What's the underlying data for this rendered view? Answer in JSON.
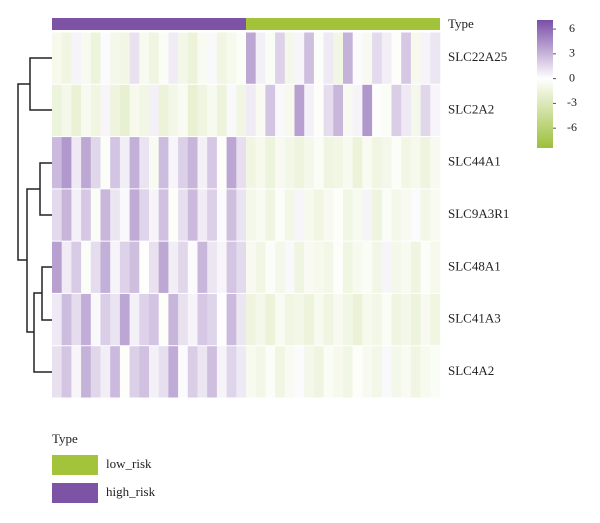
{
  "chart_data": {
    "type": "heatmap",
    "rows": [
      "SLC22A25",
      "SLC2A2",
      "SLC44A1",
      "SLC9A3R1",
      "SLC48A1",
      "SLC41A3",
      "SLC4A2"
    ],
    "annotation": {
      "title": "Type",
      "groups": [
        {
          "name": "low_risk",
          "color": "#a3c43a",
          "count": 20
        },
        {
          "name": "high_risk",
          "color": "#7d53a6",
          "count": 20
        }
      ]
    },
    "colors": {
      "low": "#9cbf3a",
      "mid": "#ffffff",
      "high": "#7a4fa8"
    },
    "zlim": [
      -8.4,
      7.1
    ],
    "zticks": [
      6,
      3,
      0,
      -3,
      -6
    ],
    "values": [
      [
        -0.8,
        -1.2,
        0.5,
        -0.6,
        -1.5,
        0.2,
        -0.9,
        -1.1,
        1.2,
        -0.7,
        -1.3,
        -0.4,
        0.8,
        -1.0,
        -1.6,
        -0.5,
        0.3,
        -1.2,
        -0.8,
        -0.3,
        3.5,
        0.6,
        -0.4,
        1.8,
        -0.9,
        0.4,
        2.6,
        -0.3,
        0.9,
        -1.1,
        3.1,
        0.2,
        -0.6,
        1.5,
        0.7,
        -0.2,
        2.2,
        -0.8,
        0.5,
        1.0
      ],
      [
        -1.5,
        -0.9,
        -1.8,
        -0.6,
        -1.2,
        0.4,
        -1.4,
        -2.0,
        -0.8,
        -1.1,
        0.6,
        -1.6,
        -1.0,
        -0.5,
        -1.9,
        -1.3,
        -0.7,
        -1.5,
        0.3,
        -1.2,
        0.8,
        -0.5,
        2.4,
        0.3,
        -0.8,
        3.8,
        0.6,
        -0.2,
        1.4,
        2.9,
        -0.6,
        0.5,
        4.2,
        0.1,
        -0.4,
        2.0,
        0.9,
        -0.9,
        1.6,
        0.4
      ],
      [
        2.8,
        4.1,
        0.9,
        3.5,
        1.6,
        -0.3,
        2.4,
        0.7,
        3.2,
        1.1,
        -0.5,
        2.7,
        0.4,
        1.9,
        3.0,
        0.6,
        2.2,
        -0.2,
        3.6,
        1.3,
        -1.2,
        -0.8,
        -1.5,
        -0.6,
        -1.0,
        -1.4,
        -0.9,
        -0.4,
        -1.3,
        -1.1,
        -0.7,
        -1.6,
        -0.5,
        -1.2,
        -0.9,
        -0.3,
        -1.1,
        -0.8,
        -1.4,
        -0.6
      ],
      [
        1.5,
        3.0,
        0.6,
        2.2,
        -0.4,
        2.9,
        1.0,
        0.3,
        3.4,
        1.7,
        0.5,
        2.5,
        -0.2,
        1.3,
        2.8,
        0.8,
        1.9,
        0.2,
        2.6,
        1.1,
        -0.9,
        -0.5,
        -1.3,
        -0.3,
        -1.0,
        0.4,
        -0.8,
        -1.2,
        -0.6,
        -0.2,
        -1.1,
        -0.7,
        0.5,
        -1.4,
        -0.4,
        -0.9,
        -0.6,
        0.2,
        -1.0,
        -0.5
      ],
      [
        3.8,
        0.8,
        2.1,
        -0.3,
        1.4,
        3.2,
        0.5,
        1.8,
        2.6,
        -0.1,
        1.2,
        3.5,
        0.7,
        1.6,
        0.2,
        2.9,
        1.0,
        0.4,
        2.3,
        1.5,
        -0.6,
        -1.1,
        -0.3,
        -0.9,
        0.3,
        -1.3,
        -0.5,
        -0.8,
        -1.0,
        -0.2,
        -1.2,
        -0.7,
        -0.4,
        -1.1,
        0.4,
        -0.9,
        -0.6,
        -1.3,
        -0.3,
        -0.8
      ],
      [
        0.9,
        2.7,
        1.4,
        3.3,
        0.3,
        2.0,
        1.1,
        3.6,
        0.6,
        1.8,
        2.4,
        -0.2,
        3.0,
        1.2,
        0.5,
        2.2,
        1.7,
        0.1,
        2.8,
        1.0,
        -1.4,
        -0.9,
        -1.6,
        -0.5,
        -1.2,
        -1.0,
        -1.5,
        -0.7,
        -1.3,
        -0.6,
        -1.1,
        -1.7,
        -0.8,
        -1.0,
        -0.4,
        -1.3,
        -0.9,
        -1.5,
        -0.6,
        -1.2
      ],
      [
        1.2,
        2.3,
        0.4,
        3.1,
        1.6,
        0.7,
        2.8,
        -0.2,
        1.9,
        2.5,
        0.6,
        1.3,
        3.4,
        0.2,
        2.0,
        1.0,
        2.6,
        0.5,
        1.7,
        0.9,
        -0.7,
        -1.0,
        -0.3,
        -1.2,
        -0.5,
        0.2,
        -0.9,
        -1.3,
        -0.4,
        -0.8,
        -1.1,
        -0.2,
        -0.6,
        -1.0,
        0.3,
        -0.9,
        -0.5,
        -1.2,
        -0.7,
        -0.4
      ]
    ]
  }
}
